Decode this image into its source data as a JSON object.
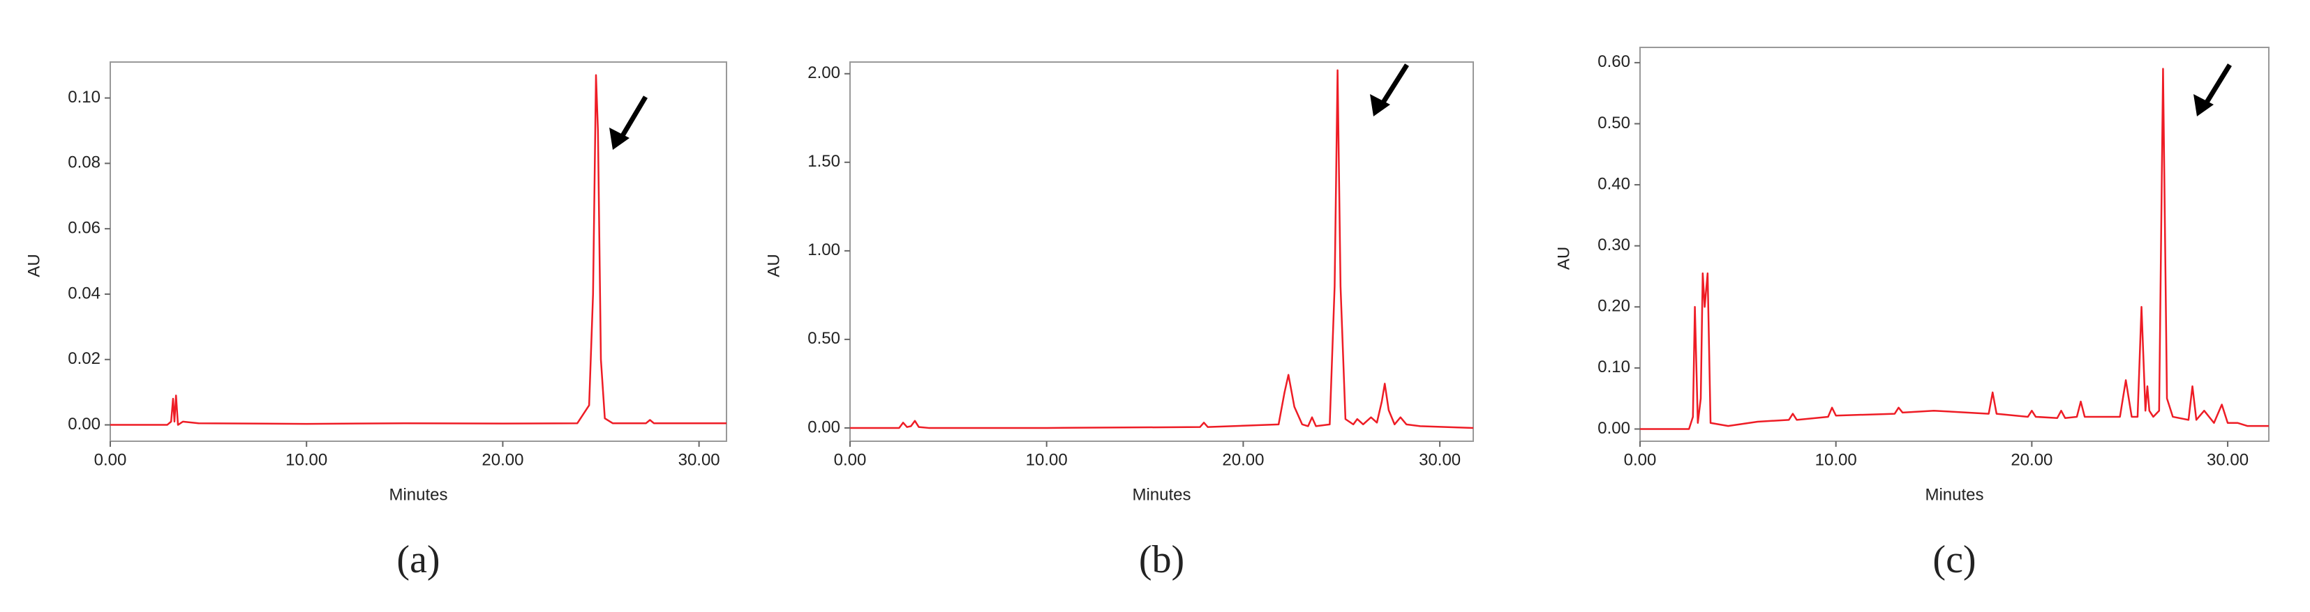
{
  "chart_data": [
    {
      "type": "line",
      "caption": "(a)",
      "x_label": "Minutes",
      "y_label": "AU",
      "color": "#ee1c25",
      "xlim": [
        0,
        31.4
      ],
      "ylim": [
        -0.005,
        0.111
      ],
      "xticks": [
        {
          "value": 0,
          "label": "0.00"
        },
        {
          "value": 10,
          "label": "10.00"
        },
        {
          "value": 20,
          "label": "20.00"
        },
        {
          "value": 30,
          "label": "30.00"
        }
      ],
      "yticks": [
        {
          "value": 0,
          "label": "0.00"
        },
        {
          "value": 0.02,
          "label": "0.02"
        },
        {
          "value": 0.04,
          "label": "0.04"
        },
        {
          "value": 0.06,
          "label": "0.06"
        },
        {
          "value": 0.08,
          "label": "0.08"
        },
        {
          "value": 0.1,
          "label": "0.10"
        }
      ],
      "x": [
        0,
        2.9,
        3.1,
        3.2,
        3.27,
        3.35,
        3.45,
        3.7,
        4.5,
        10,
        15,
        20,
        23.8,
        24.4,
        24.6,
        24.75,
        24.85,
        25.0,
        25.2,
        25.6,
        27.3,
        27.5,
        27.7,
        31.4
      ],
      "values": [
        0,
        0,
        0.001,
        0.008,
        0.001,
        0.009,
        0,
        0.001,
        0.0005,
        0.0003,
        0.0005,
        0.0004,
        0.0005,
        0.006,
        0.04,
        0.107,
        0.09,
        0.02,
        0.002,
        0.0005,
        0.0005,
        0.0015,
        0.0005,
        0.0005
      ]
    },
    {
      "type": "line",
      "caption": "(b)",
      "x_label": "Minutes",
      "y_label": "AU",
      "color": "#ee1c25",
      "xlim": [
        0,
        31.7
      ],
      "ylim": [
        -0.075,
        2.066
      ],
      "xticks": [
        {
          "value": 0,
          "label": "0.00"
        },
        {
          "value": 10,
          "label": "10.00"
        },
        {
          "value": 20,
          "label": "20.00"
        },
        {
          "value": 30,
          "label": "30.00"
        }
      ],
      "yticks": [
        {
          "value": 0,
          "label": "0.00"
        },
        {
          "value": 0.5,
          "label": "0.50"
        },
        {
          "value": 1,
          "label": "1.00"
        },
        {
          "value": 1.5,
          "label": "1.50"
        },
        {
          "value": 2,
          "label": "2.00"
        }
      ],
      "x": [
        0,
        2.5,
        2.7,
        2.9,
        3.1,
        3.3,
        3.5,
        4,
        10,
        17.8,
        18,
        18.2,
        21.8,
        22.1,
        22.3,
        22.6,
        23,
        23.3,
        23.5,
        23.7,
        24.4,
        24.65,
        24.8,
        24.95,
        25.2,
        25.6,
        25.8,
        26.1,
        26.5,
        26.8,
        27.05,
        27.2,
        27.4,
        27.7,
        28,
        28.3,
        29,
        31.7
      ],
      "values": [
        0,
        0,
        0.03,
        0.005,
        0.01,
        0.04,
        0.005,
        0,
        0,
        0.005,
        0.03,
        0.005,
        0.02,
        0.2,
        0.3,
        0.12,
        0.02,
        0.01,
        0.06,
        0.01,
        0.02,
        0.8,
        2.02,
        0.8,
        0.05,
        0.02,
        0.05,
        0.02,
        0.06,
        0.03,
        0.15,
        0.25,
        0.1,
        0.02,
        0.06,
        0.02,
        0.01,
        0
      ]
    },
    {
      "type": "line",
      "caption": "(c)",
      "x_label": "Minutes",
      "y_label": "AU",
      "color": "#ee1c25",
      "xlim": [
        0,
        32.1
      ],
      "ylim": [
        -0.02,
        0.625
      ],
      "xticks": [
        {
          "value": 0,
          "label": "0.00"
        },
        {
          "value": 10,
          "label": "10.00"
        },
        {
          "value": 20,
          "label": "20.00"
        },
        {
          "value": 30,
          "label": "30.00"
        }
      ],
      "yticks": [
        {
          "value": 0,
          "label": "0.00"
        },
        {
          "value": 0.1,
          "label": "0.10"
        },
        {
          "value": 0.2,
          "label": "0.20"
        },
        {
          "value": 0.3,
          "label": "0.30"
        },
        {
          "value": 0.4,
          "label": "0.40"
        },
        {
          "value": 0.5,
          "label": "0.50"
        },
        {
          "value": 0.6,
          "label": "0.60"
        }
      ],
      "x": [
        0,
        2.5,
        2.7,
        2.8,
        2.95,
        3.1,
        3.2,
        3.3,
        3.45,
        3.6,
        4.5,
        6,
        7.6,
        7.8,
        8,
        9.6,
        9.8,
        10,
        13,
        13.2,
        13.4,
        15,
        17.8,
        18,
        18.2,
        19.8,
        20,
        20.2,
        21.3,
        21.5,
        21.7,
        22.3,
        22.5,
        22.7,
        24.5,
        24.8,
        25.1,
        25.4,
        25.6,
        25.8,
        25.9,
        26.0,
        26.2,
        26.5,
        26.7,
        26.9,
        27.2,
        28,
        28.2,
        28.4,
        28.8,
        29.3,
        29.7,
        30,
        30.5,
        31,
        32.1
      ],
      "values": [
        0,
        0,
        0.02,
        0.2,
        0.01,
        0.05,
        0.255,
        0.2,
        0.255,
        0.01,
        0.005,
        0.012,
        0.015,
        0.025,
        0.015,
        0.02,
        0.035,
        0.022,
        0.025,
        0.035,
        0.027,
        0.03,
        0.025,
        0.06,
        0.025,
        0.02,
        0.03,
        0.02,
        0.018,
        0.03,
        0.018,
        0.02,
        0.045,
        0.02,
        0.02,
        0.08,
        0.02,
        0.02,
        0.2,
        0.03,
        0.07,
        0.03,
        0.02,
        0.03,
        0.59,
        0.05,
        0.02,
        0.015,
        0.07,
        0.015,
        0.03,
        0.01,
        0.04,
        0.01,
        0.01,
        0.005,
        0.005
      ]
    }
  ]
}
